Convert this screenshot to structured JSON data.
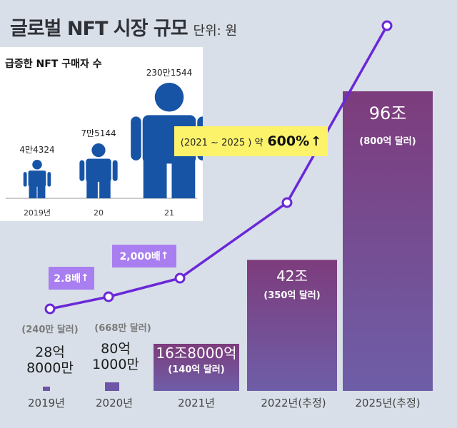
{
  "title": "글로벌 NFT 시장 규모",
  "unit": "단위: 원",
  "chart_data": [
    {
      "type": "bar",
      "title": "글로벌 NFT 시장 규모",
      "unit": "단위: 원",
      "categories": [
        "2019년",
        "2020년",
        "2021년",
        "2022년(추정)",
        "2025년(추정)"
      ],
      "value_labels": [
        "28억 8000만",
        "80억 1000만",
        "16조8000억",
        "42조",
        "96조"
      ],
      "usd_labels": [
        "(240만 달러)",
        "(668만 달러)",
        "(140억 달러)",
        "(350억 달러)",
        "(800억 달러)"
      ],
      "series": [
        {
          "values_won_trillion": [
            0.00288,
            0.00801,
            16.8,
            42,
            96
          ]
        }
      ],
      "annotations": [
        "2.8배 ↑",
        "2,000배 ↑",
        "(2021 ~ 2025 ) 약 600% ↑"
      ],
      "growth_line_points": 5
    },
    {
      "type": "bar",
      "title": "급증한 NFT 구매자 수",
      "categories": [
        "2019년",
        "20",
        "21"
      ],
      "value_labels": [
        "4만4324",
        "7만5144",
        "230만1544"
      ],
      "values": [
        44324,
        75144,
        2301544
      ]
    }
  ],
  "badges": {
    "b1": "2.8배",
    "b2": "2,000배",
    "arrow": "↑"
  },
  "growth_note": {
    "prefix": "(2021 ~ 2025 ) 약",
    "pct": "600%",
    "arrow": "↑"
  },
  "colors": {
    "line": "#6a28d8",
    "bar_top": "#7d3c7c",
    "bar_bottom": "#6e5ea8",
    "badge": "#a97ef0",
    "highlight": "#fdf36b",
    "person": "#1754a6"
  }
}
